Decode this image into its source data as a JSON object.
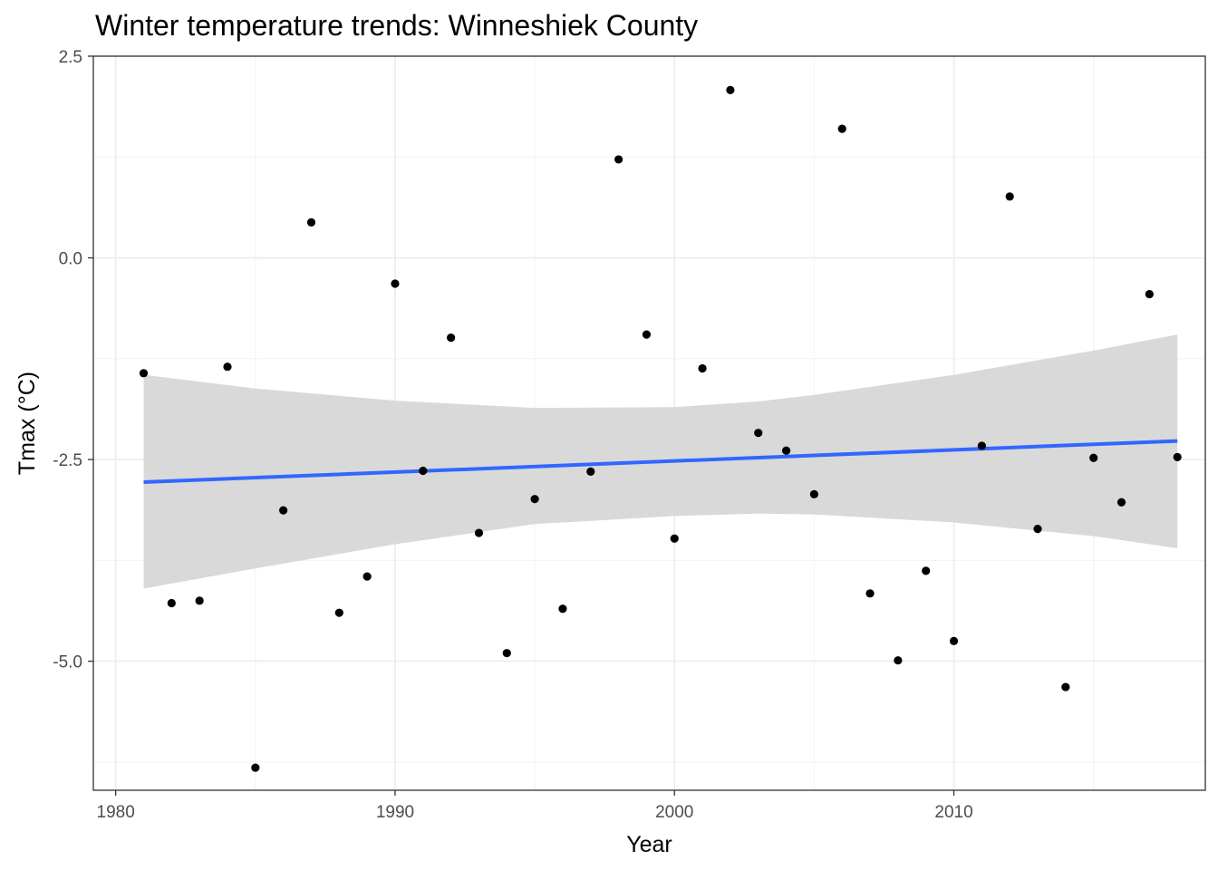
{
  "chart_data": {
    "type": "scatter",
    "title": "Winter temperature trends: Winneshiek County",
    "xlabel": "Year",
    "ylabel": "Tmax (°C)",
    "xlim": [
      1979.2,
      2019.0
    ],
    "ylim": [
      -6.6,
      2.5
    ],
    "x_ticks": [
      1980,
      1990,
      2000,
      2010
    ],
    "x_tick_labels": [
      "1980",
      "1990",
      "2000",
      "2010"
    ],
    "x_minor": [
      1985,
      1995,
      2005,
      2015
    ],
    "y_ticks": [
      2.5,
      0.0,
      -2.5,
      -5.0
    ],
    "y_tick_labels": [
      "2.5",
      "0.0",
      "-2.5",
      "-5.0"
    ],
    "y_minor": [
      1.25,
      -1.25,
      -3.75,
      -6.25
    ],
    "grid": true,
    "legend": "none",
    "points": {
      "x": [
        1981,
        1982,
        1983,
        1984,
        1985,
        1986,
        1987,
        1988,
        1989,
        1990,
        1991,
        1992,
        1993,
        1994,
        1995,
        1996,
        1997,
        1998,
        1999,
        2000,
        2001,
        2002,
        2003,
        2004,
        2005,
        2006,
        2007,
        2008,
        2009,
        2010,
        2011,
        2012,
        2013,
        2014,
        2015,
        2016,
        2017,
        2018
      ],
      "y": [
        -1.43,
        -4.28,
        -4.25,
        -1.35,
        -6.32,
        -3.13,
        0.44,
        -4.4,
        -3.95,
        -0.32,
        -2.64,
        -0.99,
        -3.41,
        -4.9,
        -2.99,
        -4.35,
        -2.65,
        1.22,
        -0.95,
        -3.48,
        -1.37,
        2.08,
        -2.17,
        -2.39,
        -2.93,
        1.6,
        -4.16,
        -4.99,
        -3.88,
        -4.75,
        -2.33,
        0.76,
        -3.36,
        -5.32,
        -2.48,
        -3.03,
        -0.45,
        -2.47
      ]
    },
    "trend": {
      "x": [
        1981,
        2018
      ],
      "y": [
        -2.78,
        -2.27
      ],
      "color": "#3366FF"
    },
    "ribbon": {
      "x": [
        1981,
        1985,
        1990,
        1995,
        2000,
        2003,
        2005,
        2010,
        2015,
        2018
      ],
      "upper": [
        -1.45,
        -1.62,
        -1.77,
        -1.86,
        -1.85,
        -1.78,
        -1.7,
        -1.45,
        -1.15,
        -0.95
      ],
      "lower": [
        -4.1,
        -3.85,
        -3.55,
        -3.3,
        -3.2,
        -3.17,
        -3.18,
        -3.28,
        -3.45,
        -3.6
      ],
      "color": "#D9D9D9"
    },
    "point_color": "#000000"
  }
}
